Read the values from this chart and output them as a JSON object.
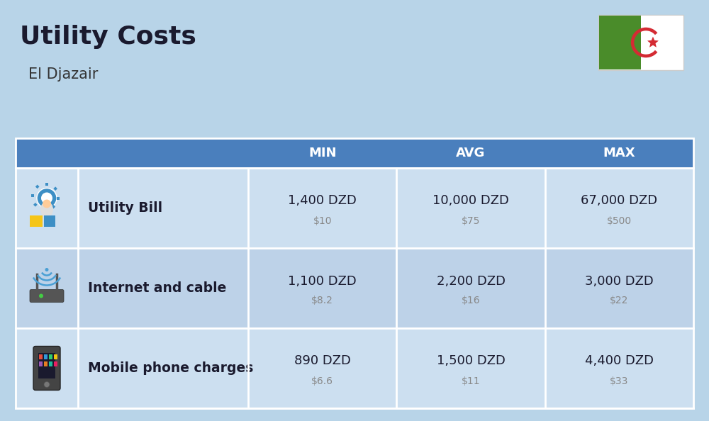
{
  "title": "Utility Costs",
  "subtitle": "El Djazair",
  "bg_color": "#b8d4e8",
  "header_bg_color": "#4a7fbd",
  "header_text_color": "#ffffff",
  "row_colors": [
    "#ccdff0",
    "#bdd2e8",
    "#ccdff0"
  ],
  "border_color": "#ffffff",
  "col_headers": [
    "MIN",
    "AVG",
    "MAX"
  ],
  "rows": [
    {
      "label": "Utility Bill",
      "min_dzd": "1,400 DZD",
      "min_usd": "$10",
      "avg_dzd": "10,000 DZD",
      "avg_usd": "$75",
      "max_dzd": "67,000 DZD",
      "max_usd": "$500"
    },
    {
      "label": "Internet and cable",
      "min_dzd": "1,100 DZD",
      "min_usd": "$8.2",
      "avg_dzd": "2,200 DZD",
      "avg_usd": "$16",
      "max_dzd": "3,000 DZD",
      "max_usd": "$22"
    },
    {
      "label": "Mobile phone charges",
      "min_dzd": "890 DZD",
      "min_usd": "$6.6",
      "avg_dzd": "1,500 DZD",
      "avg_usd": "$11",
      "max_dzd": "4,400 DZD",
      "max_usd": "$33"
    }
  ],
  "dzd_fontsize": 13,
  "usd_fontsize": 10,
  "label_fontsize": 13.5,
  "header_fontsize": 13,
  "title_fontsize": 26,
  "subtitle_fontsize": 15,
  "flag_green": "#4a8c2a",
  "flag_red": "#d42b33"
}
